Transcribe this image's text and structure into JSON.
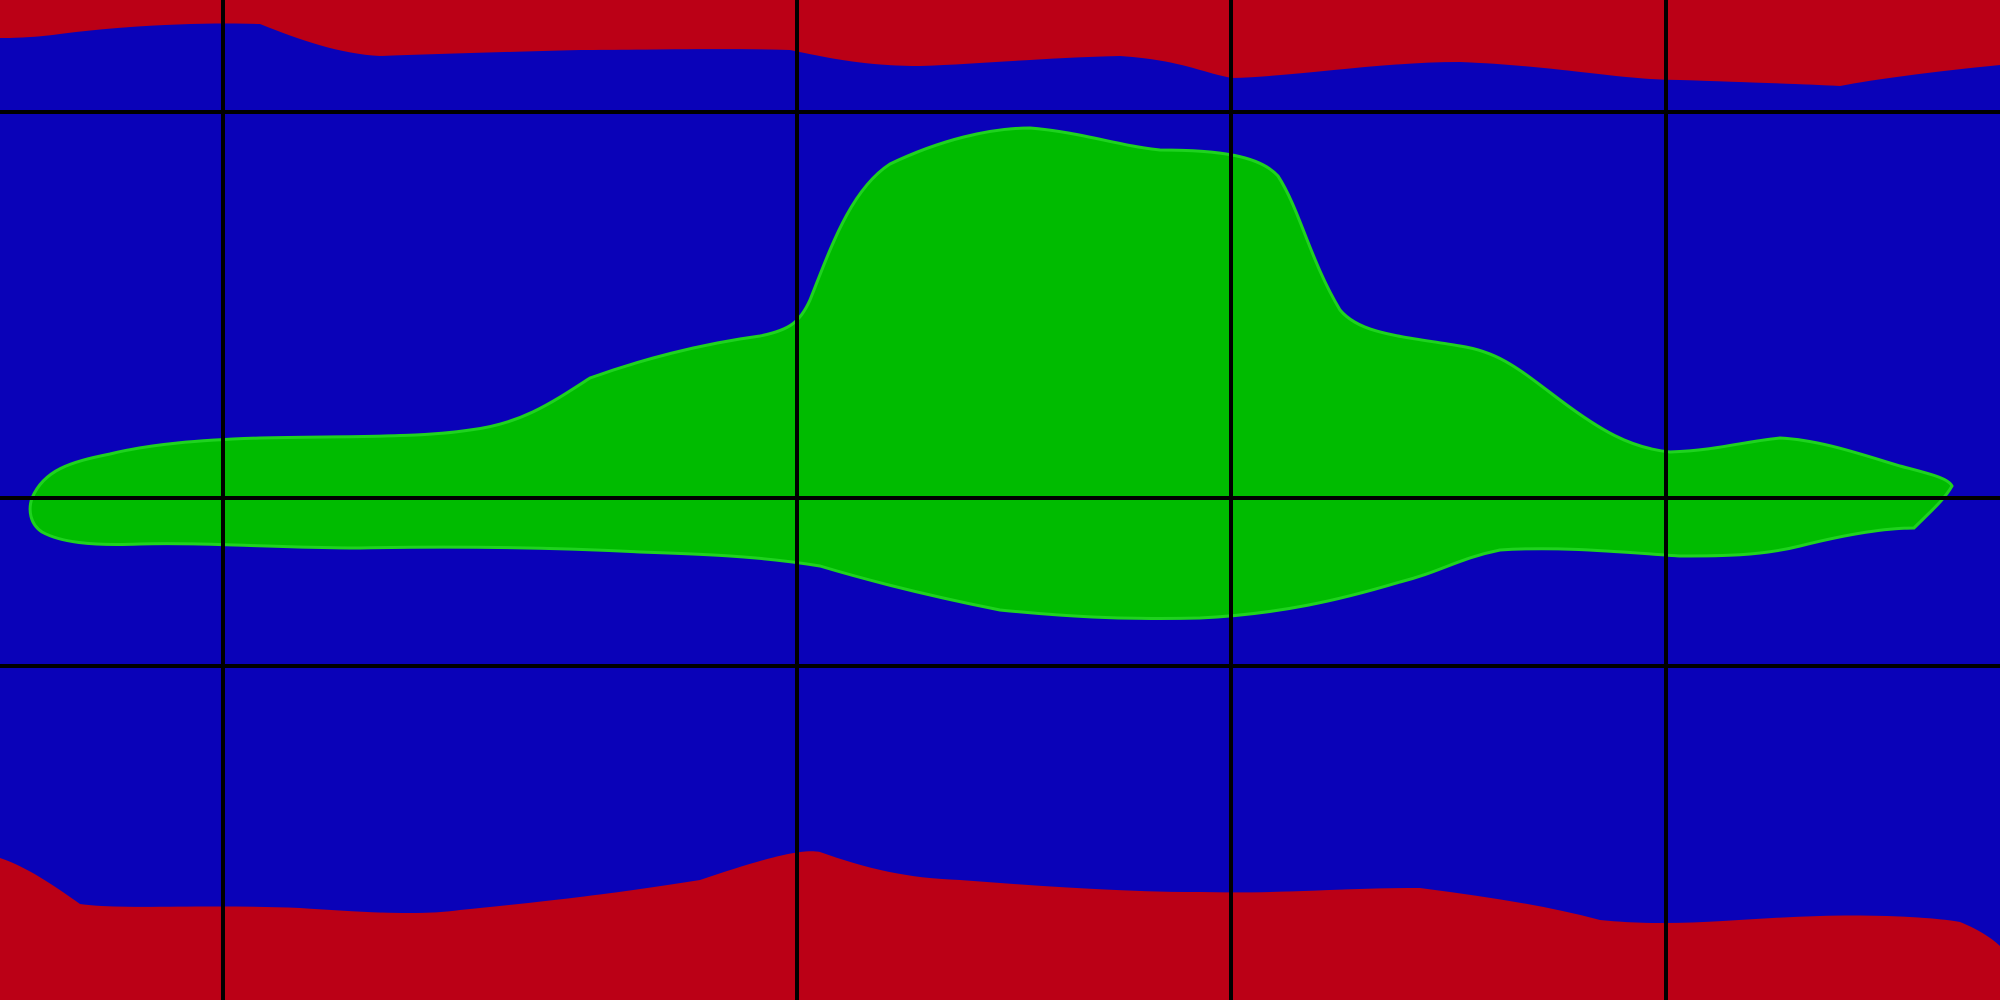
{
  "map": {
    "projection": "equirectangular",
    "colors": {
      "ocean": "#0a02b8",
      "land": "#00bb00",
      "polar_ice": "#bb0016",
      "grid": "#000000",
      "coast": "#1fd21f"
    },
    "regions": [
      {
        "name": "north-polar-region",
        "kind": "polar_ice"
      },
      {
        "name": "central-landmass",
        "kind": "land"
      },
      {
        "name": "south-polar-region",
        "kind": "polar_ice"
      }
    ],
    "grid": {
      "visible": true,
      "latitude_lines": 3,
      "longitude_lines": 4
    }
  }
}
